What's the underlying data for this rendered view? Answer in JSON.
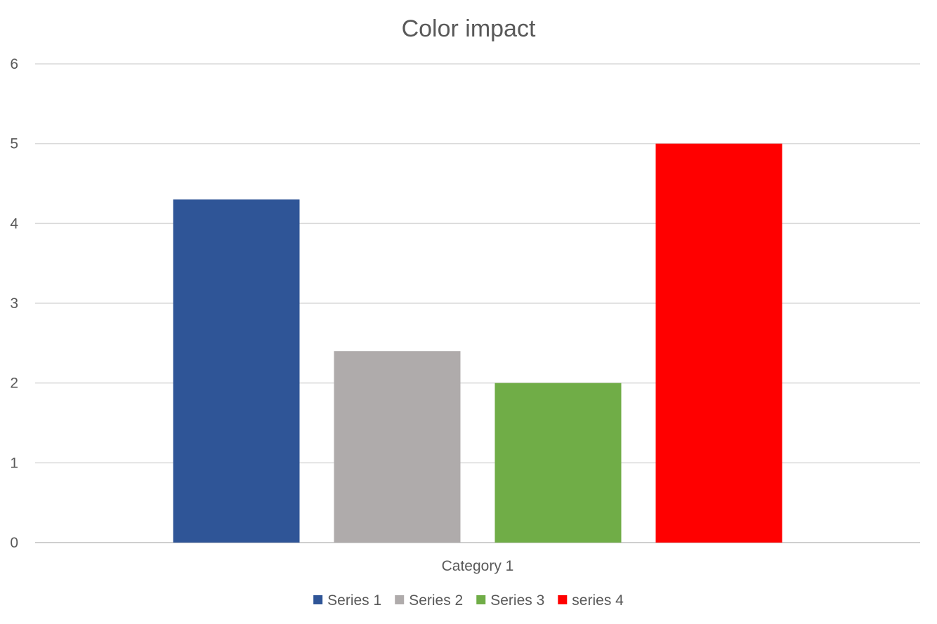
{
  "chart_data": {
    "type": "bar",
    "title": "Color impact",
    "xlabel": "",
    "ylabel": "",
    "categories": [
      "Category 1"
    ],
    "series": [
      {
        "name": "Series 1",
        "values": [
          4.3
        ],
        "color": "#2f5597"
      },
      {
        "name": "Series 2",
        "values": [
          2.4
        ],
        "color": "#afabab"
      },
      {
        "name": "Series 3",
        "values": [
          2.0
        ],
        "color": "#70ad47"
      },
      {
        "name": "series 4",
        "values": [
          5.0
        ],
        "color": "#ff0000"
      }
    ],
    "ylim": [
      0,
      6
    ],
    "yticks": [
      "0",
      "1",
      "2",
      "3",
      "4",
      "5",
      "6"
    ],
    "grid": true,
    "legend_position": "bottom"
  }
}
